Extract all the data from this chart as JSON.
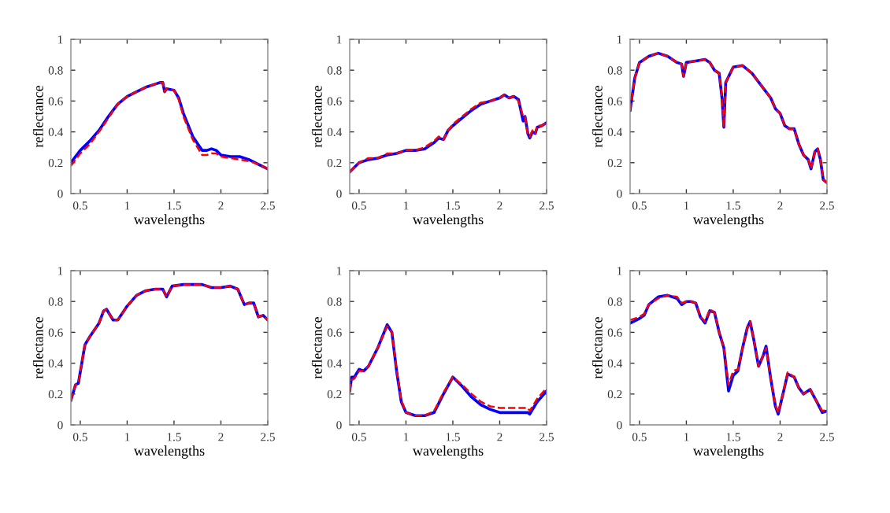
{
  "chart_data": [
    {
      "type": "line",
      "xlabel": "wavelengths",
      "ylabel": "reflectance",
      "xlim": [
        0.4,
        2.5
      ],
      "ylim": [
        0,
        1
      ],
      "xticks": [
        0.5,
        1,
        1.5,
        2,
        2.5
      ],
      "yticks": [
        0,
        0.2,
        0.4,
        0.6,
        0.8,
        1
      ],
      "grid": false,
      "x": [
        0.4,
        0.5,
        0.6,
        0.7,
        0.8,
        0.9,
        1.0,
        1.1,
        1.2,
        1.3,
        1.35,
        1.38,
        1.4,
        1.42,
        1.5,
        1.55,
        1.6,
        1.7,
        1.8,
        1.85,
        1.9,
        1.95,
        2.0,
        2.1,
        2.2,
        2.3,
        2.4,
        2.5
      ],
      "series": [
        {
          "color": "#0000ff",
          "line_style": "solid",
          "values": [
            0.2,
            0.28,
            0.34,
            0.41,
            0.5,
            0.58,
            0.63,
            0.66,
            0.69,
            0.71,
            0.72,
            0.72,
            0.66,
            0.68,
            0.67,
            0.62,
            0.52,
            0.37,
            0.28,
            0.28,
            0.29,
            0.28,
            0.25,
            0.24,
            0.24,
            0.22,
            0.19,
            0.16
          ]
        },
        {
          "color": "#ff0000",
          "line_style": "dashed",
          "values": [
            0.18,
            0.26,
            0.32,
            0.4,
            0.49,
            0.58,
            0.63,
            0.66,
            0.69,
            0.71,
            0.72,
            0.72,
            0.66,
            0.68,
            0.67,
            0.61,
            0.5,
            0.35,
            0.25,
            0.25,
            0.26,
            0.26,
            0.24,
            0.23,
            0.22,
            0.21,
            0.19,
            0.16
          ]
        }
      ]
    },
    {
      "type": "line",
      "xlabel": "wavelengths",
      "ylabel": "reflectance",
      "xlim": [
        0.4,
        2.5
      ],
      "ylim": [
        0,
        1
      ],
      "xticks": [
        0.5,
        1,
        1.5,
        2,
        2.5
      ],
      "yticks": [
        0,
        0.2,
        0.4,
        0.6,
        0.8,
        1
      ],
      "grid": false,
      "x": [
        0.4,
        0.5,
        0.6,
        0.7,
        0.8,
        0.9,
        1.0,
        1.1,
        1.2,
        1.3,
        1.35,
        1.4,
        1.45,
        1.5,
        1.6,
        1.7,
        1.8,
        1.9,
        2.0,
        2.05,
        2.1,
        2.15,
        2.2,
        2.25,
        2.27,
        2.3,
        2.32,
        2.35,
        2.38,
        2.4,
        2.45,
        2.5
      ],
      "series": [
        {
          "color": "#0000ff",
          "line_style": "solid",
          "values": [
            0.14,
            0.2,
            0.22,
            0.23,
            0.25,
            0.26,
            0.28,
            0.28,
            0.29,
            0.33,
            0.36,
            0.35,
            0.41,
            0.44,
            0.49,
            0.54,
            0.58,
            0.6,
            0.62,
            0.64,
            0.62,
            0.63,
            0.61,
            0.47,
            0.5,
            0.39,
            0.36,
            0.4,
            0.39,
            0.43,
            0.44,
            0.46
          ]
        },
        {
          "color": "#ff0000",
          "line_style": "dashed",
          "values": [
            0.14,
            0.2,
            0.23,
            0.23,
            0.26,
            0.26,
            0.28,
            0.28,
            0.3,
            0.34,
            0.37,
            0.35,
            0.41,
            0.45,
            0.5,
            0.55,
            0.59,
            0.6,
            0.62,
            0.64,
            0.62,
            0.63,
            0.6,
            0.5,
            0.5,
            0.38,
            0.37,
            0.41,
            0.39,
            0.44,
            0.44,
            0.46
          ]
        }
      ]
    },
    {
      "type": "line",
      "xlabel": "wavelengths",
      "ylabel": "reflectance",
      "xlim": [
        0.4,
        2.5
      ],
      "ylim": [
        0,
        1
      ],
      "xticks": [
        0.5,
        1,
        1.5,
        2,
        2.5
      ],
      "yticks": [
        0,
        0.2,
        0.4,
        0.6,
        0.8,
        1
      ],
      "grid": false,
      "x": [
        0.4,
        0.45,
        0.5,
        0.6,
        0.7,
        0.8,
        0.9,
        0.95,
        0.97,
        1.0,
        1.1,
        1.2,
        1.25,
        1.3,
        1.35,
        1.38,
        1.4,
        1.42,
        1.5,
        1.6,
        1.7,
        1.8,
        1.9,
        1.95,
        2.0,
        2.05,
        2.1,
        2.15,
        2.2,
        2.25,
        2.3,
        2.33,
        2.37,
        2.4,
        2.43,
        2.46,
        2.5
      ],
      "series": [
        {
          "color": "#0000ff",
          "line_style": "solid",
          "values": [
            0.54,
            0.75,
            0.85,
            0.89,
            0.91,
            0.89,
            0.85,
            0.84,
            0.76,
            0.85,
            0.86,
            0.87,
            0.85,
            0.8,
            0.78,
            0.62,
            0.43,
            0.72,
            0.82,
            0.83,
            0.78,
            0.7,
            0.62,
            0.55,
            0.52,
            0.44,
            0.42,
            0.42,
            0.32,
            0.25,
            0.22,
            0.16,
            0.27,
            0.29,
            0.22,
            0.09,
            0.07
          ]
        },
        {
          "color": "#ff0000",
          "line_style": "dashed",
          "values": [
            0.54,
            0.75,
            0.85,
            0.89,
            0.91,
            0.89,
            0.85,
            0.84,
            0.76,
            0.85,
            0.86,
            0.87,
            0.85,
            0.8,
            0.78,
            0.62,
            0.43,
            0.72,
            0.82,
            0.83,
            0.78,
            0.7,
            0.62,
            0.55,
            0.52,
            0.44,
            0.42,
            0.42,
            0.32,
            0.25,
            0.22,
            0.16,
            0.27,
            0.29,
            0.22,
            0.09,
            0.07
          ]
        }
      ]
    },
    {
      "type": "line",
      "xlabel": "wavelengths",
      "ylabel": "reflectance",
      "xlim": [
        0.4,
        2.5
      ],
      "ylim": [
        0,
        1
      ],
      "xticks": [
        0.5,
        1,
        1.5,
        2,
        2.5
      ],
      "yticks": [
        0,
        0.2,
        0.4,
        0.6,
        0.8,
        1
      ],
      "grid": false,
      "x": [
        0.4,
        0.45,
        0.48,
        0.55,
        0.6,
        0.7,
        0.75,
        0.78,
        0.85,
        0.9,
        1.0,
        1.1,
        1.2,
        1.3,
        1.38,
        1.42,
        1.48,
        1.6,
        1.8,
        1.9,
        2.0,
        2.1,
        2.18,
        2.25,
        2.3,
        2.35,
        2.4,
        2.45,
        2.5
      ],
      "series": [
        {
          "color": "#0000ff",
          "line_style": "solid",
          "values": [
            0.16,
            0.26,
            0.27,
            0.52,
            0.57,
            0.66,
            0.74,
            0.75,
            0.68,
            0.68,
            0.77,
            0.84,
            0.87,
            0.88,
            0.88,
            0.83,
            0.9,
            0.91,
            0.91,
            0.89,
            0.89,
            0.9,
            0.88,
            0.78,
            0.79,
            0.79,
            0.7,
            0.71,
            0.68
          ]
        },
        {
          "color": "#ff0000",
          "line_style": "dashed",
          "values": [
            0.16,
            0.26,
            0.27,
            0.52,
            0.57,
            0.66,
            0.74,
            0.75,
            0.68,
            0.68,
            0.77,
            0.84,
            0.87,
            0.88,
            0.88,
            0.83,
            0.9,
            0.91,
            0.91,
            0.89,
            0.89,
            0.9,
            0.88,
            0.78,
            0.79,
            0.79,
            0.7,
            0.71,
            0.68
          ]
        }
      ]
    },
    {
      "type": "line",
      "xlabel": "wavelengths",
      "ylabel": "reflectance",
      "xlim": [
        0.4,
        2.5
      ],
      "ylim": [
        0,
        1
      ],
      "xticks": [
        0.5,
        1,
        1.5,
        2,
        2.5
      ],
      "yticks": [
        0,
        0.2,
        0.4,
        0.6,
        0.8,
        1
      ],
      "grid": false,
      "x": [
        0.4,
        0.42,
        0.45,
        0.5,
        0.55,
        0.6,
        0.7,
        0.8,
        0.85,
        0.9,
        0.95,
        1.0,
        1.1,
        1.2,
        1.3,
        1.4,
        1.5,
        1.6,
        1.7,
        1.8,
        1.9,
        2.0,
        2.1,
        2.2,
        2.3,
        2.32,
        2.4,
        2.5
      ],
      "series": [
        {
          "color": "#0000ff",
          "line_style": "solid",
          "values": [
            0.22,
            0.31,
            0.31,
            0.36,
            0.35,
            0.38,
            0.5,
            0.65,
            0.6,
            0.35,
            0.15,
            0.08,
            0.06,
            0.06,
            0.08,
            0.2,
            0.31,
            0.25,
            0.18,
            0.13,
            0.1,
            0.08,
            0.08,
            0.08,
            0.08,
            0.07,
            0.15,
            0.22
          ]
        },
        {
          "color": "#ff0000",
          "line_style": "dashed",
          "values": [
            0.22,
            0.29,
            0.3,
            0.35,
            0.35,
            0.38,
            0.5,
            0.64,
            0.6,
            0.36,
            0.16,
            0.08,
            0.06,
            0.06,
            0.09,
            0.21,
            0.31,
            0.26,
            0.2,
            0.15,
            0.12,
            0.11,
            0.11,
            0.11,
            0.11,
            0.09,
            0.17,
            0.24
          ]
        }
      ]
    },
    {
      "type": "line",
      "xlabel": "wavelengths",
      "ylabel": "reflectance",
      "xlim": [
        0.4,
        2.5
      ],
      "ylim": [
        0,
        1
      ],
      "xticks": [
        0.5,
        1,
        1.5,
        2,
        2.5
      ],
      "yticks": [
        0,
        0.2,
        0.4,
        0.6,
        0.8,
        1
      ],
      "grid": false,
      "x": [
        0.4,
        0.5,
        0.55,
        0.6,
        0.7,
        0.8,
        0.9,
        0.95,
        1.0,
        1.05,
        1.1,
        1.15,
        1.2,
        1.25,
        1.3,
        1.35,
        1.4,
        1.45,
        1.5,
        1.55,
        1.6,
        1.65,
        1.68,
        1.72,
        1.77,
        1.82,
        1.85,
        1.9,
        1.95,
        1.98,
        2.03,
        2.08,
        2.15,
        2.2,
        2.25,
        2.32,
        2.4,
        2.45,
        2.5
      ],
      "series": [
        {
          "color": "#0000ff",
          "line_style": "solid",
          "values": [
            0.66,
            0.69,
            0.71,
            0.78,
            0.83,
            0.84,
            0.82,
            0.78,
            0.8,
            0.8,
            0.79,
            0.7,
            0.66,
            0.74,
            0.73,
            0.6,
            0.5,
            0.22,
            0.32,
            0.35,
            0.5,
            0.63,
            0.67,
            0.55,
            0.38,
            0.45,
            0.51,
            0.3,
            0.12,
            0.07,
            0.2,
            0.33,
            0.31,
            0.24,
            0.2,
            0.23,
            0.14,
            0.08,
            0.09
          ]
        },
        {
          "color": "#ff0000",
          "line_style": "dashed",
          "values": [
            0.68,
            0.7,
            0.72,
            0.78,
            0.82,
            0.84,
            0.83,
            0.79,
            0.8,
            0.8,
            0.79,
            0.7,
            0.67,
            0.75,
            0.73,
            0.6,
            0.5,
            0.26,
            0.35,
            0.36,
            0.5,
            0.63,
            0.67,
            0.55,
            0.38,
            0.45,
            0.5,
            0.3,
            0.13,
            0.08,
            0.2,
            0.34,
            0.31,
            0.24,
            0.2,
            0.23,
            0.14,
            0.09,
            0.1
          ]
        }
      ]
    }
  ]
}
